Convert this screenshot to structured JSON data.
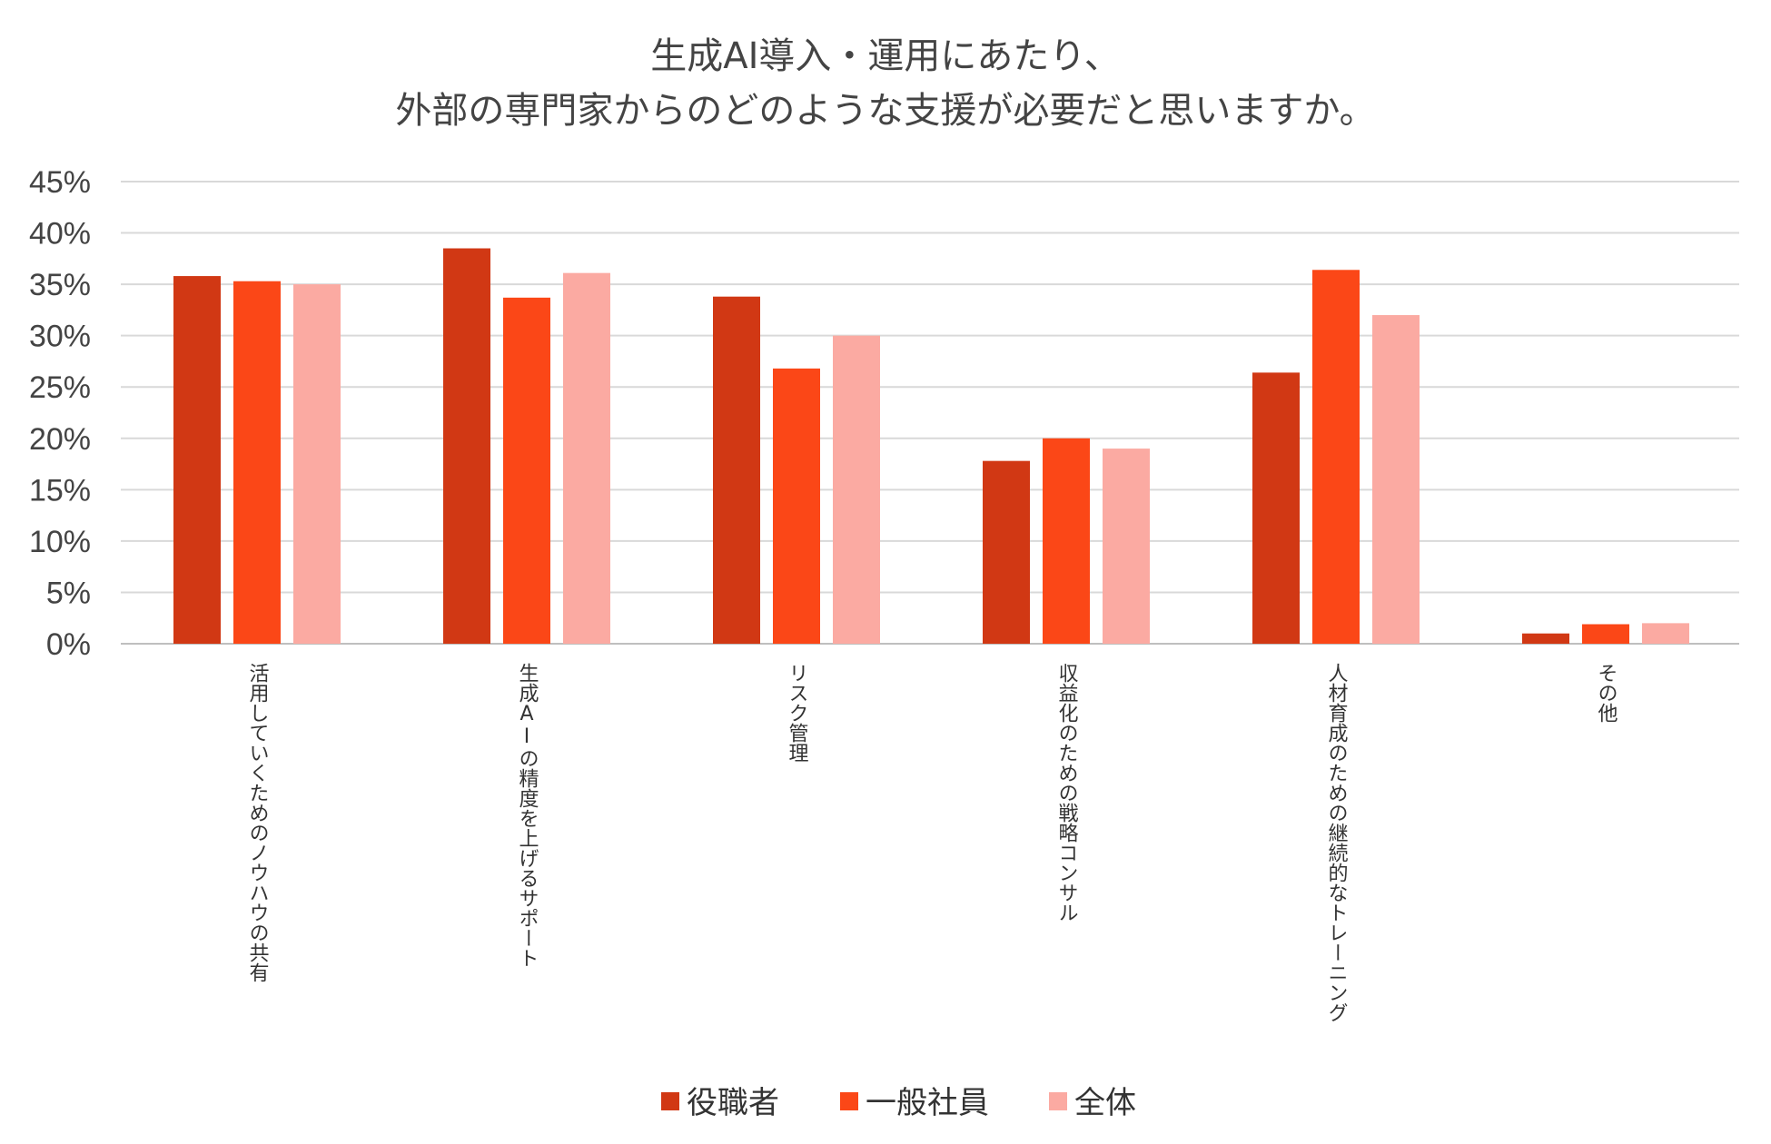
{
  "chart_data": {
    "type": "bar",
    "title": [
      "生成AI導入・運用にあたり、",
      "外部の専門家からのどのような支援が必要だと思いますか。"
    ],
    "categories": [
      "活用していくためのノウハウの共有",
      "生成AIの精度を上げるサポート",
      "リスク管理",
      "収益化のための戦略コンサル",
      "人材育成のための継続的なトレーニング",
      "その他"
    ],
    "series": [
      {
        "name": "役職者",
        "color": "#d13814",
        "values": [
          35.8,
          38.5,
          33.8,
          17.8,
          26.4,
          1.0
        ]
      },
      {
        "name": "一般社員",
        "color": "#fb4717",
        "values": [
          35.3,
          33.7,
          26.8,
          20.0,
          36.4,
          1.9
        ]
      },
      {
        "name": "全体",
        "color": "#fbaaa2",
        "values": [
          35.0,
          36.1,
          30.0,
          19.0,
          32.0,
          2.0
        ]
      }
    ],
    "ylim": [
      0,
      45
    ],
    "yticks": [
      0,
      5,
      10,
      15,
      20,
      25,
      30,
      35,
      40,
      45
    ],
    "ytick_labels": [
      "0%",
      "5%",
      "10%",
      "15%",
      "20%",
      "25%",
      "30%",
      "35%",
      "40%",
      "45%"
    ],
    "xlabel": "",
    "ylabel": "",
    "grid": true,
    "legend": "bottom-center"
  }
}
